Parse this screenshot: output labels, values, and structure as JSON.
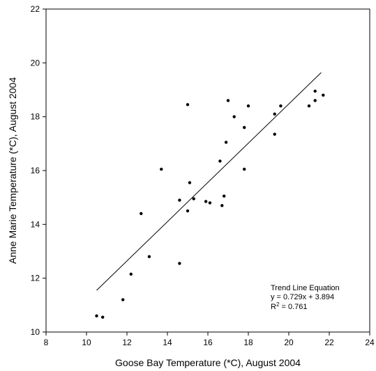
{
  "chart_data": {
    "type": "scatter",
    "title": "",
    "xlabel": "Goose Bay Temperature (*C), August 2004",
    "ylabel": "Anne Marie Temperature (*C), August 2004",
    "xlim": [
      8,
      24
    ],
    "ylim": [
      10,
      22
    ],
    "x_ticks": [
      8,
      10,
      12,
      14,
      16,
      18,
      20,
      22,
      24
    ],
    "y_ticks": [
      10,
      12,
      14,
      16,
      18,
      20,
      22
    ],
    "grid": false,
    "colors": {
      "points": "#000000",
      "trend_line": "#000000"
    },
    "series": [
      {
        "points": [
          {
            "x": 10.5,
            "y": 10.6
          },
          {
            "x": 10.8,
            "y": 10.55
          },
          {
            "x": 11.8,
            "y": 11.2
          },
          {
            "x": 12.2,
            "y": 12.15
          },
          {
            "x": 12.7,
            "y": 14.4
          },
          {
            "x": 13.1,
            "y": 12.8
          },
          {
            "x": 13.7,
            "y": 16.05
          },
          {
            "x": 14.6,
            "y": 12.55
          },
          {
            "x": 14.6,
            "y": 14.9
          },
          {
            "x": 15.0,
            "y": 14.5
          },
          {
            "x": 15.0,
            "y": 18.45
          },
          {
            "x": 15.1,
            "y": 15.55
          },
          {
            "x": 15.3,
            "y": 14.95
          },
          {
            "x": 15.9,
            "y": 14.85
          },
          {
            "x": 16.1,
            "y": 14.8
          },
          {
            "x": 16.6,
            "y": 16.35
          },
          {
            "x": 16.7,
            "y": 14.7
          },
          {
            "x": 16.8,
            "y": 15.05
          },
          {
            "x": 16.9,
            "y": 17.05
          },
          {
            "x": 17.0,
            "y": 18.6
          },
          {
            "x": 17.3,
            "y": 18.0
          },
          {
            "x": 17.8,
            "y": 17.6
          },
          {
            "x": 17.8,
            "y": 16.05
          },
          {
            "x": 18.0,
            "y": 18.4
          },
          {
            "x": 19.3,
            "y": 18.1
          },
          {
            "x": 19.3,
            "y": 17.35
          },
          {
            "x": 19.6,
            "y": 18.4
          },
          {
            "x": 21.0,
            "y": 18.4
          },
          {
            "x": 21.3,
            "y": 18.95
          },
          {
            "x": 21.3,
            "y": 18.6
          },
          {
            "x": 21.7,
            "y": 18.8
          }
        ]
      }
    ],
    "trend_line": {
      "slope": 0.729,
      "intercept": 3.894,
      "x_range": [
        10.5,
        21.6
      ]
    },
    "annotation": {
      "title": "Trend Line Equation",
      "equation": "y = 0.729x + 3.894",
      "r2_prefix": "R",
      "r2_sup": "2",
      "r2_value": " = 0.761"
    }
  }
}
